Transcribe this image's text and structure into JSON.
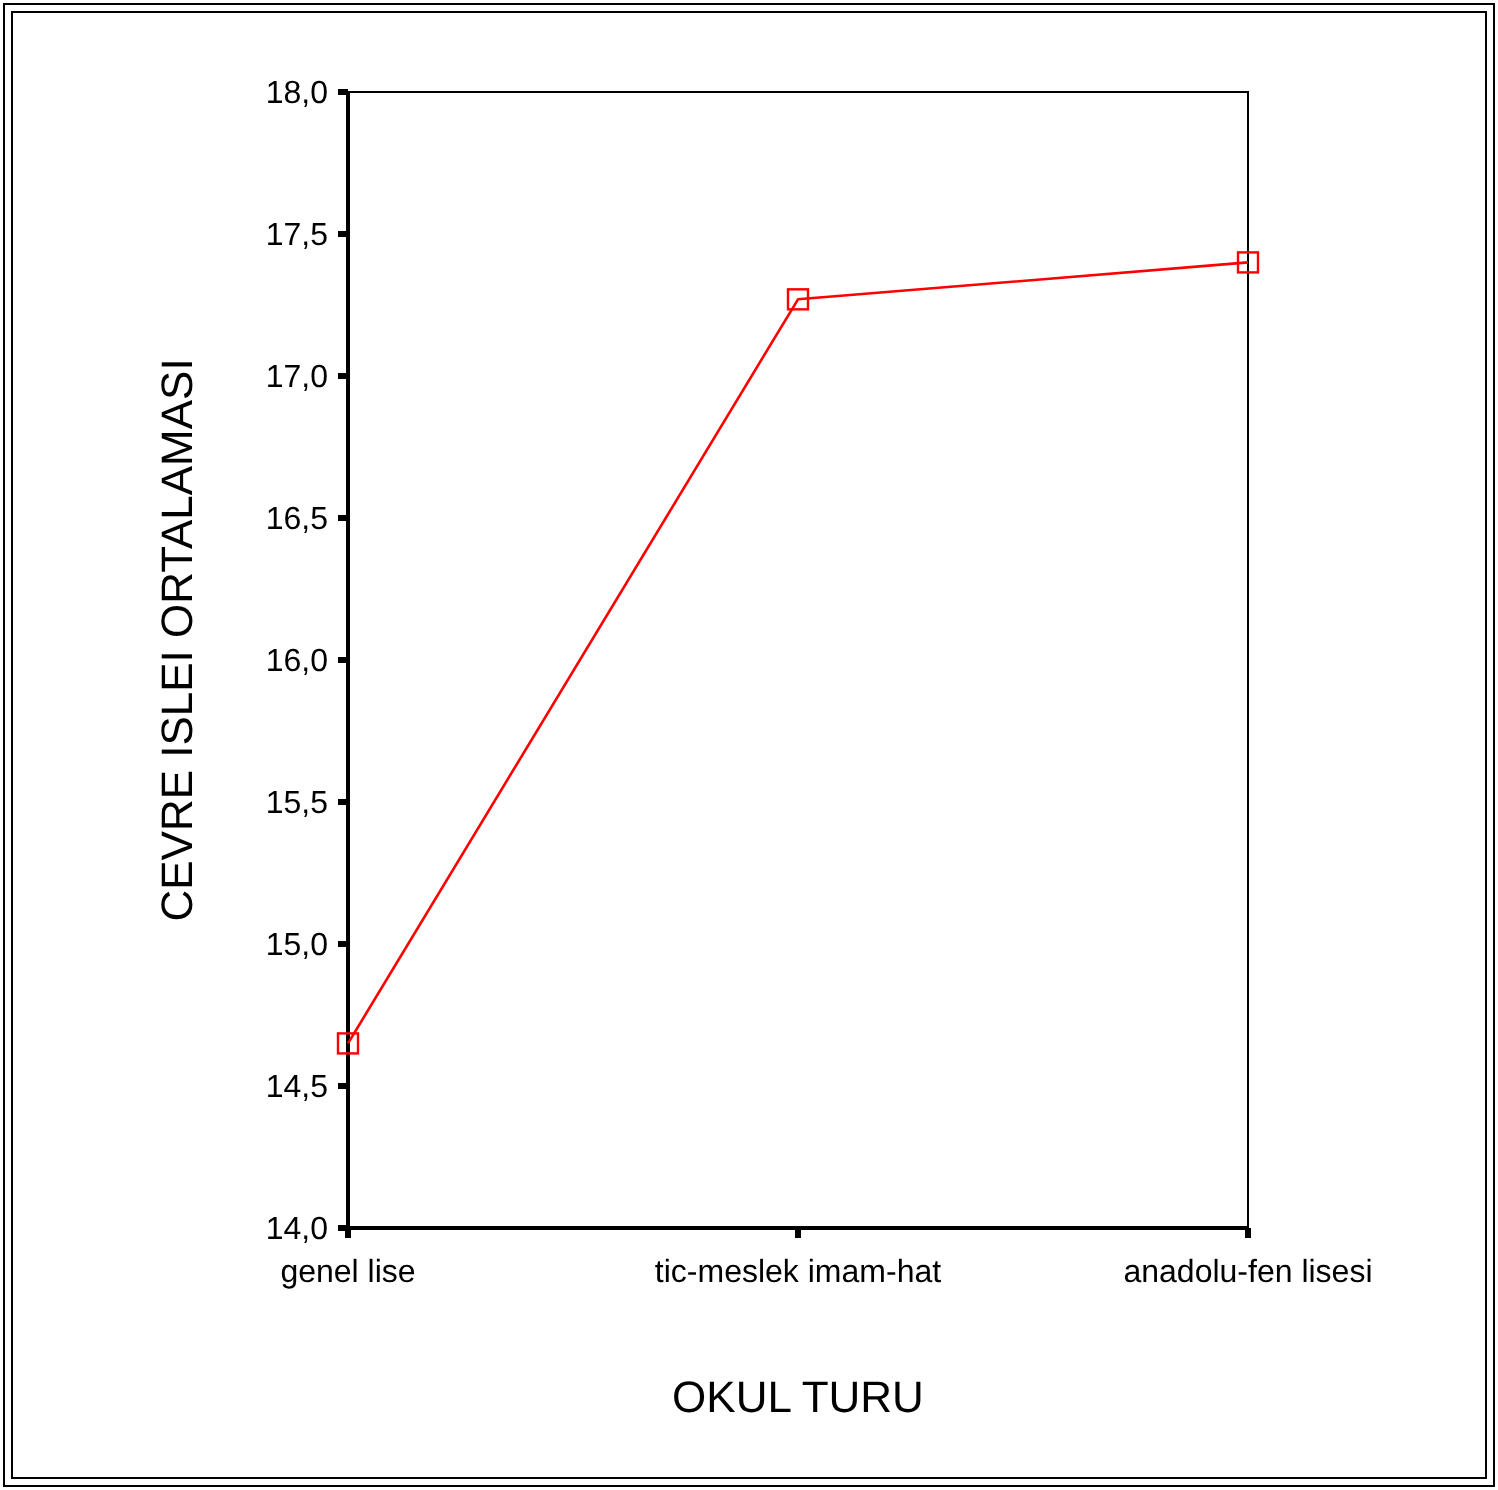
{
  "chart_data": {
    "type": "line",
    "xlabel": "OKUL TURU",
    "ylabel": "CEVRE ISLEI ORTALAMASI",
    "categories": [
      "genel lise",
      "tic-meslek imam-hat",
      "anadolu-fen lisesi"
    ],
    "series": [
      {
        "color": "#ff0000",
        "values": [
          14.65,
          17.27,
          17.4
        ]
      }
    ],
    "ylim": [
      14,
      18.0
    ],
    "yticks": [
      {
        "value": 14,
        "label": "14,0"
      },
      {
        "value": 14.5,
        "label": "14,5"
      },
      {
        "value": 15,
        "label": "15,0"
      },
      {
        "value": 15.5,
        "label": "15,5"
      },
      {
        "value": 16,
        "label": "16,0"
      },
      {
        "value": 16.5,
        "label": "16,5"
      },
      {
        "value": 17,
        "label": "17,0"
      },
      {
        "value": 17.5,
        "label": "17,5"
      },
      {
        "value": 18,
        "label": "18,0"
      }
    ],
    "marker": "square",
    "line_style": "solid",
    "grid": false
  }
}
